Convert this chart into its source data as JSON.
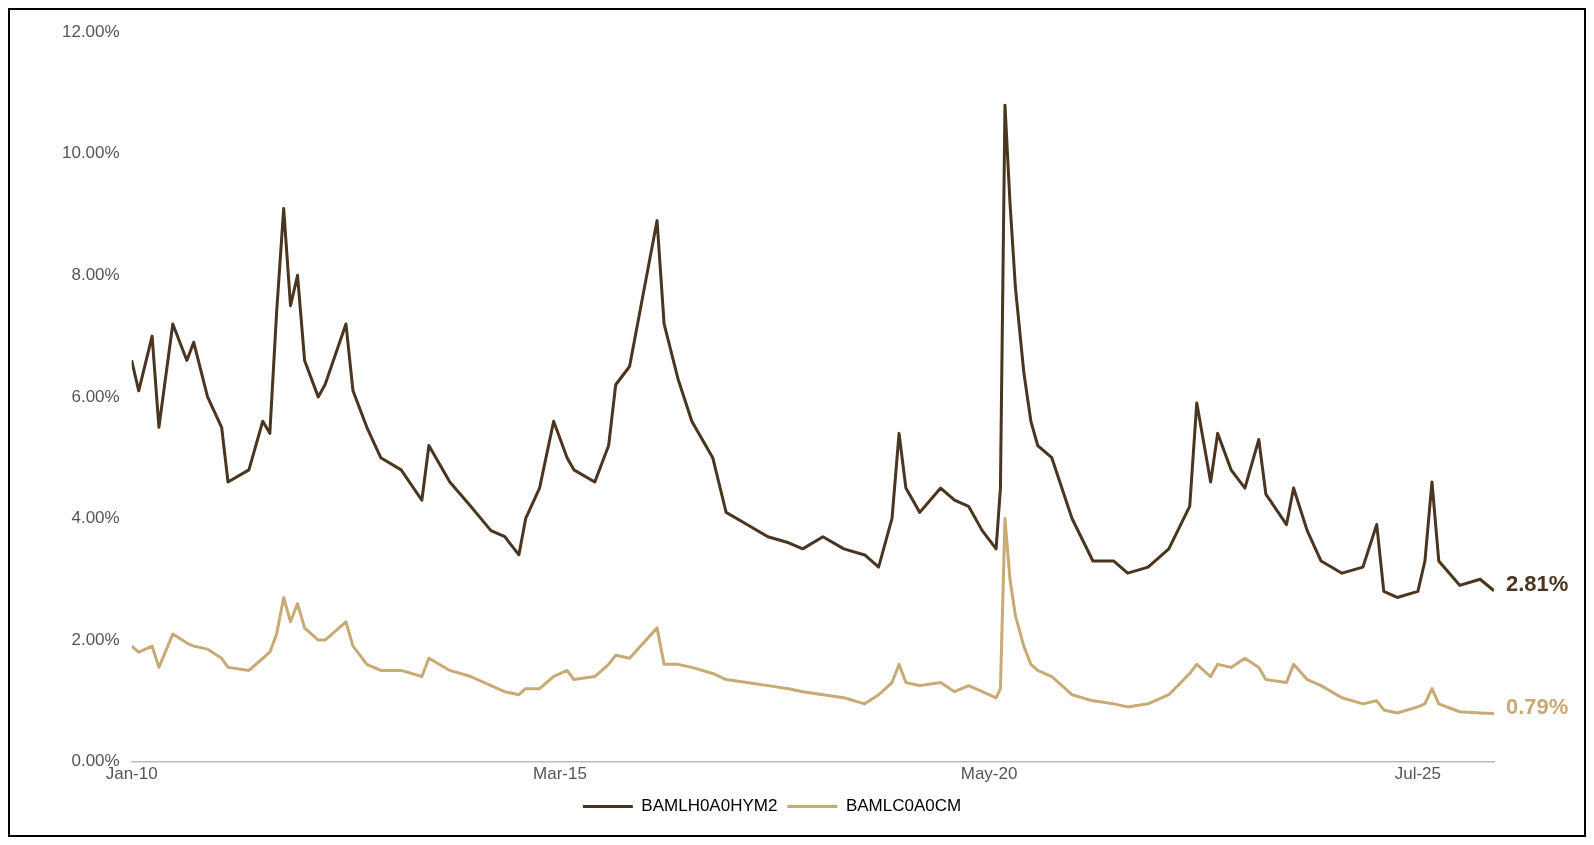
{
  "chart_data": {
    "type": "line",
    "x": [
      "2010-01",
      "2010-02",
      "2010-04",
      "2010-05",
      "2010-07",
      "2010-09",
      "2010-10",
      "2010-12",
      "2011-02",
      "2011-03",
      "2011-06",
      "2011-08",
      "2011-09",
      "2011-10",
      "2011-11",
      "2011-12",
      "2012-01",
      "2012-02",
      "2012-04",
      "2012-05",
      "2012-08",
      "2012-09",
      "2012-11",
      "2013-01",
      "2013-04",
      "2013-07",
      "2013-08",
      "2013-11",
      "2014-02",
      "2014-05",
      "2014-07",
      "2014-09",
      "2014-10",
      "2014-12",
      "2015-02",
      "2015-04",
      "2015-05",
      "2015-08",
      "2015-10",
      "2015-11",
      "2016-01",
      "2016-05",
      "2016-06",
      "2016-08",
      "2016-10",
      "2017-01",
      "2017-03",
      "2017-06",
      "2017-09",
      "2017-12",
      "2018-02",
      "2018-05",
      "2018-08",
      "2018-11",
      "2019-01",
      "2019-03",
      "2019-04",
      "2019-05",
      "2019-07",
      "2019-10",
      "2019-12",
      "2020-02",
      "2020-04",
      "2020-06-01",
      "2020-06-20",
      "2020-07-10",
      "2020-08-01",
      "2020-08-25",
      "2020-10",
      "2020-11",
      "2020-12",
      "2021-02",
      "2021-05",
      "2021-08",
      "2021-11",
      "2022-01",
      "2022-04",
      "2022-07",
      "2022-10",
      "2022-11",
      "2023-01",
      "2023-02",
      "2023-04",
      "2023-06",
      "2023-08",
      "2023-09",
      "2023-12",
      "2024-01",
      "2024-03",
      "2024-05",
      "2024-08",
      "2024-11",
      "2025-01",
      "2025-02",
      "2025-04",
      "2025-07",
      "2025-08",
      "2025-09",
      "2025-10",
      "2026-01",
      "2026-04",
      "2026-06"
    ],
    "series": [
      {
        "name": "BAMLH0A0HYM2",
        "color": "#4a3520",
        "values": [
          6.6,
          6.1,
          7.0,
          5.5,
          7.2,
          6.6,
          6.9,
          6.0,
          5.5,
          4.6,
          4.8,
          5.6,
          5.4,
          7.4,
          9.1,
          7.5,
          8.0,
          6.6,
          6.0,
          6.2,
          7.2,
          6.1,
          5.5,
          5.0,
          4.8,
          4.3,
          5.2,
          4.6,
          4.2,
          3.8,
          3.7,
          3.4,
          4.0,
          4.5,
          5.6,
          5.0,
          4.8,
          4.6,
          5.2,
          6.2,
          6.5,
          8.9,
          7.2,
          6.3,
          5.6,
          5.0,
          4.1,
          3.9,
          3.7,
          3.6,
          3.5,
          3.7,
          3.5,
          3.4,
          3.2,
          4.0,
          5.4,
          4.5,
          4.1,
          4.5,
          4.3,
          4.2,
          3.8,
          3.5,
          4.5,
          10.8,
          9.2,
          7.8,
          6.4,
          5.6,
          5.2,
          5.0,
          4.0,
          3.3,
          3.3,
          3.1,
          3.2,
          3.5,
          4.2,
          5.9,
          4.6,
          5.4,
          4.8,
          4.5,
          5.3,
          4.4,
          3.9,
          4.5,
          3.8,
          3.3,
          3.1,
          3.2,
          3.9,
          2.8,
          2.7,
          2.8,
          3.3,
          4.6,
          3.3,
          2.9,
          3.0,
          2.81
        ],
        "value_labels": [
          null,
          null,
          null,
          null,
          null,
          null,
          null,
          null,
          null,
          null,
          null,
          null,
          null,
          null,
          null,
          null,
          null,
          null,
          null,
          null,
          null,
          null,
          null,
          null,
          null,
          null,
          null,
          null,
          null,
          null,
          null,
          null,
          null,
          null,
          null,
          null,
          null,
          null,
          null,
          null,
          null,
          null,
          null,
          null,
          null,
          null,
          null,
          null,
          null,
          null,
          null,
          null,
          null,
          null,
          null,
          null,
          null,
          null,
          null,
          null,
          null,
          null,
          null,
          null,
          null,
          null,
          null,
          null,
          null,
          null,
          null,
          null,
          null,
          null,
          null,
          null,
          null,
          null,
          null,
          null,
          null,
          null,
          null,
          null,
          null,
          null,
          null,
          null,
          null,
          null,
          null,
          null,
          null,
          null,
          null,
          null,
          null,
          null,
          null,
          null,
          null,
          "2.81%"
        ]
      },
      {
        "name": "BAMLC0A0CM",
        "color": "#c8ab74",
        "values": [
          1.9,
          1.8,
          1.9,
          1.55,
          2.1,
          1.95,
          1.9,
          1.85,
          1.7,
          1.55,
          1.5,
          1.7,
          1.8,
          2.1,
          2.7,
          2.3,
          2.6,
          2.2,
          2.0,
          2.0,
          2.3,
          1.9,
          1.6,
          1.5,
          1.5,
          1.4,
          1.7,
          1.5,
          1.4,
          1.25,
          1.15,
          1.1,
          1.2,
          1.2,
          1.4,
          1.5,
          1.35,
          1.4,
          1.6,
          1.75,
          1.7,
          2.2,
          1.6,
          1.6,
          1.55,
          1.45,
          1.35,
          1.3,
          1.25,
          1.2,
          1.15,
          1.1,
          1.05,
          0.95,
          1.1,
          1.3,
          1.6,
          1.3,
          1.25,
          1.3,
          1.15,
          1.25,
          1.15,
          1.05,
          1.2,
          4.0,
          3.0,
          2.4,
          1.9,
          1.6,
          1.5,
          1.4,
          1.1,
          1.0,
          0.95,
          0.9,
          0.95,
          1.1,
          1.45,
          1.6,
          1.4,
          1.6,
          1.55,
          1.7,
          1.55,
          1.35,
          1.3,
          1.6,
          1.35,
          1.25,
          1.05,
          0.95,
          1.0,
          0.85,
          0.8,
          0.9,
          0.95,
          1.2,
          0.95,
          0.82,
          0.8,
          0.79
        ],
        "value_labels": [
          null,
          null,
          null,
          null,
          null,
          null,
          null,
          null,
          null,
          null,
          null,
          null,
          null,
          null,
          null,
          null,
          null,
          null,
          null,
          null,
          null,
          null,
          null,
          null,
          null,
          null,
          null,
          null,
          null,
          null,
          null,
          null,
          null,
          null,
          null,
          null,
          null,
          null,
          null,
          null,
          null,
          null,
          null,
          null,
          null,
          null,
          null,
          null,
          null,
          null,
          null,
          null,
          null,
          null,
          null,
          null,
          null,
          null,
          null,
          null,
          null,
          null,
          null,
          null,
          null,
          null,
          null,
          null,
          null,
          null,
          null,
          null,
          null,
          null,
          null,
          null,
          null,
          null,
          null,
          null,
          null,
          null,
          null,
          null,
          null,
          null,
          null,
          null,
          null,
          null,
          null,
          null,
          null,
          null,
          null,
          null,
          null,
          null,
          null,
          null,
          null,
          "0.79%"
        ]
      }
    ],
    "xlim": [
      "2010-01",
      "2026-06"
    ],
    "xticks": [
      {
        "value": "2010-01",
        "label": "Jan-10"
      },
      {
        "value": "2015-03",
        "label": "Mar-15"
      },
      {
        "value": "2020-05",
        "label": "May-20"
      },
      {
        "value": "2025-07",
        "label": "Jul-25"
      }
    ],
    "ylim": [
      0,
      12
    ],
    "yticks": [
      {
        "value": 0,
        "label": "0.00%"
      },
      {
        "value": 2,
        "label": "2.00%"
      },
      {
        "value": 4,
        "label": "4.00%"
      },
      {
        "value": 6,
        "label": "6.00%"
      },
      {
        "value": 8,
        "label": "8.00%"
      },
      {
        "value": 10,
        "label": "10.00%"
      },
      {
        "value": 12,
        "label": "12.00%"
      }
    ],
    "grid": false,
    "legend": "bottom",
    "marker": "none",
    "line_style": "solid"
  }
}
